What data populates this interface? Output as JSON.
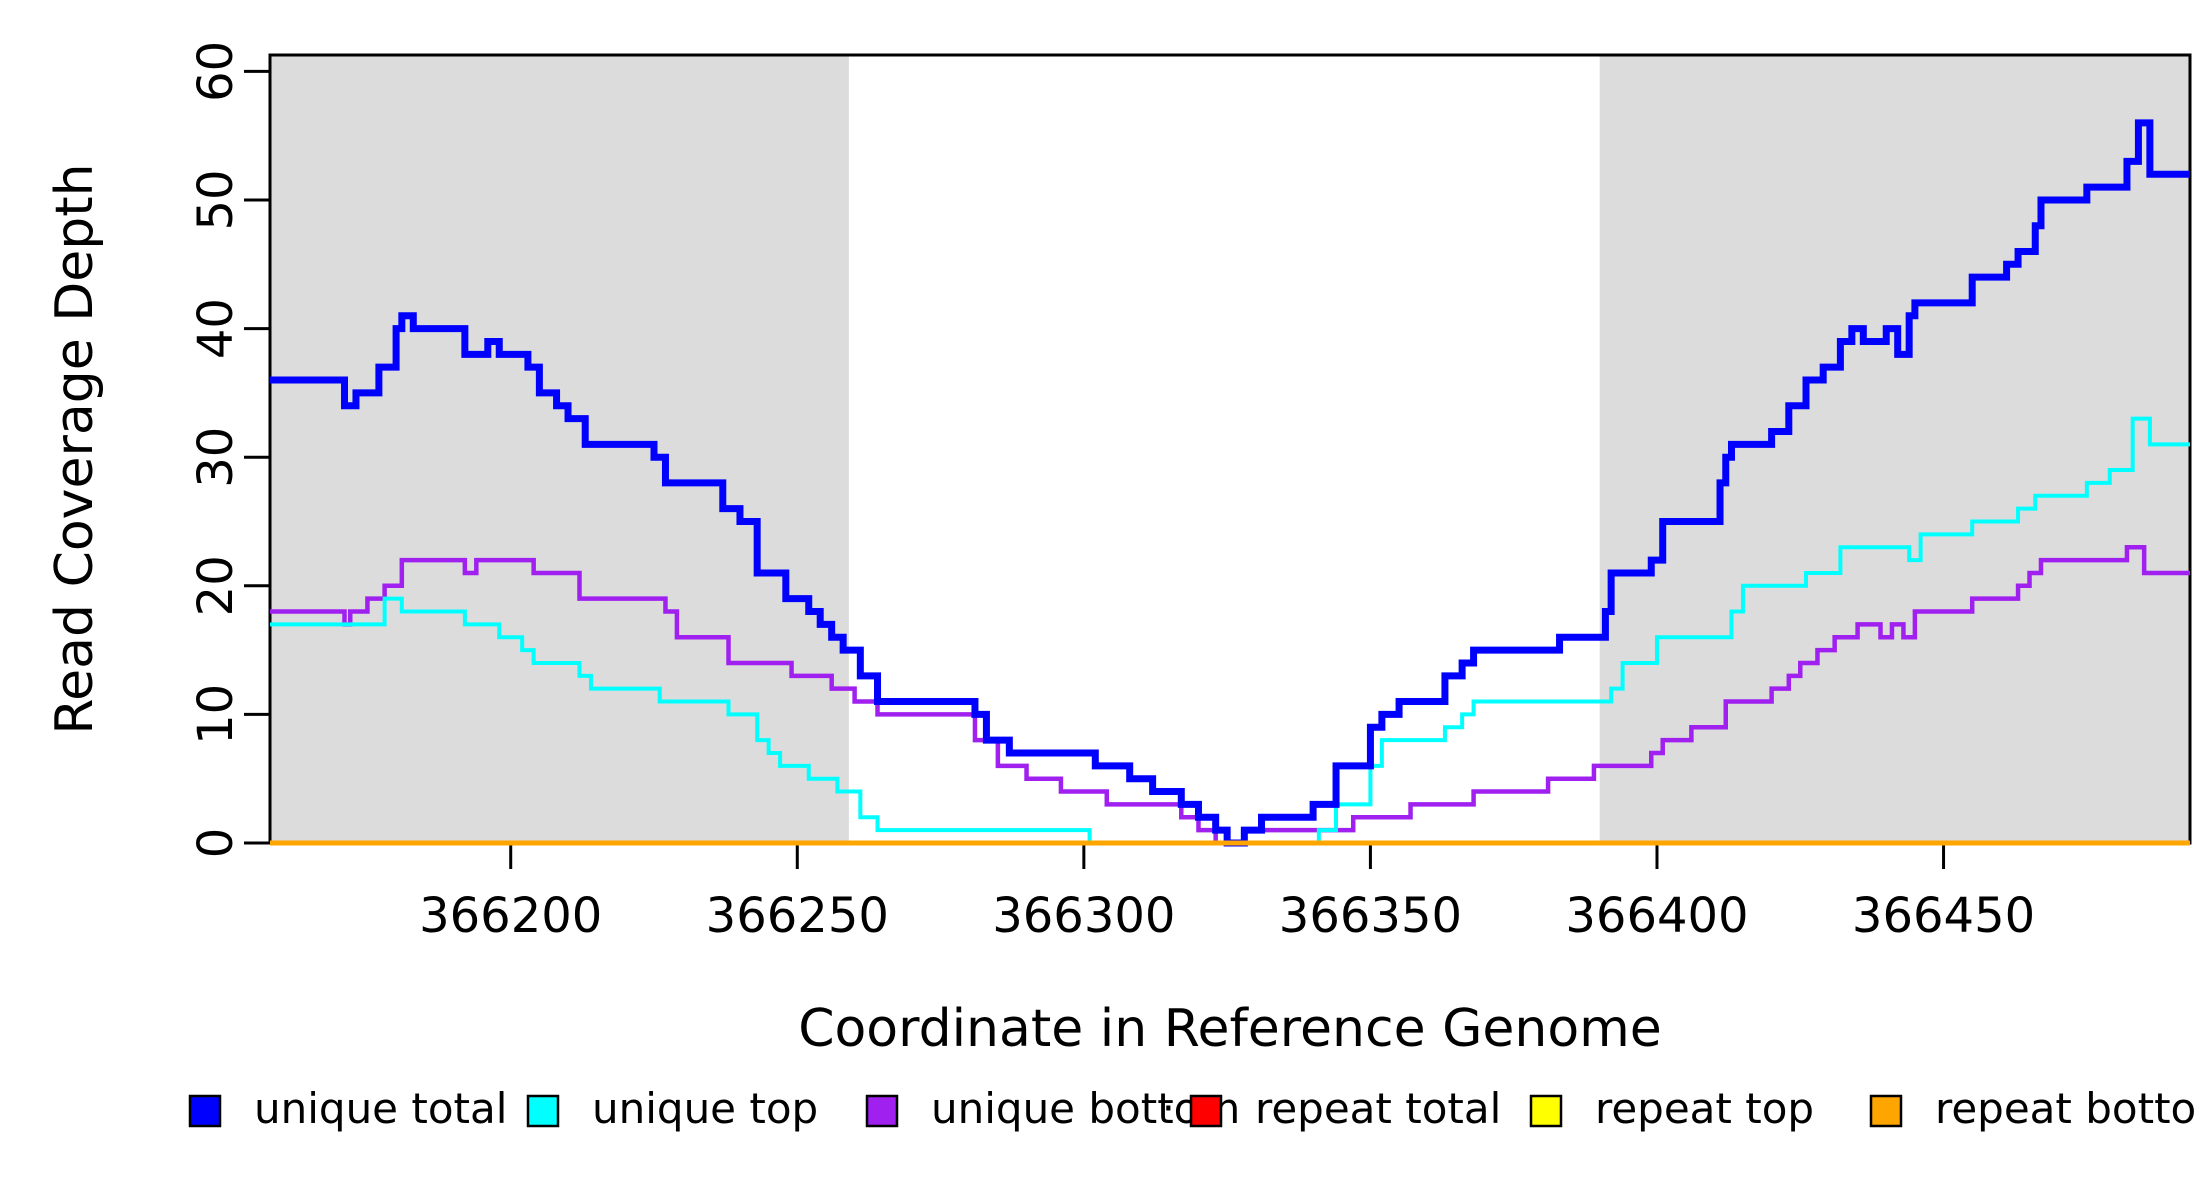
{
  "chart_data": {
    "type": "line",
    "subtype": "step-after",
    "title": "",
    "xlabel": "Coordinate in Reference Genome",
    "ylabel": "Read Coverage Depth",
    "x_axis": {
      "range": [
        366158,
        366493
      ],
      "ticks": [
        366200,
        366250,
        366300,
        366350,
        366400,
        366450
      ],
      "tick_labels": [
        "366200",
        "366250",
        "366300",
        "366350",
        "366400",
        "366450"
      ]
    },
    "y_axis": {
      "range": [
        0,
        61
      ],
      "ticks": [
        0,
        10,
        20,
        30,
        40,
        50,
        60
      ],
      "tick_labels": [
        "0",
        "10",
        "20",
        "30",
        "40",
        "50",
        "60"
      ]
    },
    "grid": false,
    "shade_color": "#dcdcdc",
    "shaded_regions": [
      {
        "name": "left-repeat-region",
        "x0": 366158,
        "x1": 366259
      },
      {
        "name": "right-repeat-region",
        "x0": 366390,
        "x1": 366493
      }
    ],
    "series": [
      {
        "name": "repeat total",
        "id": "repeat-total",
        "color": "#ff0000",
        "width": 4,
        "steps": [
          [
            366158,
            0
          ],
          [
            366493,
            0
          ]
        ]
      },
      {
        "name": "repeat top",
        "id": "repeat-top",
        "color": "#ffff00",
        "width": 4,
        "steps": [
          [
            366158,
            0
          ],
          [
            366493,
            0
          ]
        ]
      },
      {
        "name": "unique bottom",
        "id": "unique-bottom",
        "color": "#a020f0",
        "width": 4.5,
        "steps": [
          [
            366158,
            18
          ],
          [
            366171,
            17
          ],
          [
            366172,
            18
          ],
          [
            366175,
            19
          ],
          [
            366178,
            20
          ],
          [
            366181,
            22
          ],
          [
            366192,
            21
          ],
          [
            366194,
            22
          ],
          [
            366204,
            21
          ],
          [
            366212,
            19
          ],
          [
            366227,
            18
          ],
          [
            366229,
            16
          ],
          [
            366238,
            14
          ],
          [
            366249,
            13
          ],
          [
            366256,
            12
          ],
          [
            366260,
            11
          ],
          [
            366264,
            10
          ],
          [
            366281,
            8
          ],
          [
            366285,
            6
          ],
          [
            366290,
            5
          ],
          [
            366296,
            4
          ],
          [
            366304,
            3
          ],
          [
            366317,
            2
          ],
          [
            366320,
            1
          ],
          [
            366323,
            0
          ],
          [
            366328,
            1
          ],
          [
            366347,
            2
          ],
          [
            366357,
            3
          ],
          [
            366368,
            4
          ],
          [
            366381,
            5
          ],
          [
            366389,
            6
          ],
          [
            366399,
            7
          ],
          [
            366401,
            8
          ],
          [
            366406,
            9
          ],
          [
            366412,
            11
          ],
          [
            366420,
            12
          ],
          [
            366423,
            13
          ],
          [
            366425,
            14
          ],
          [
            366428,
            15
          ],
          [
            366431,
            16
          ],
          [
            366435,
            17
          ],
          [
            366439,
            16
          ],
          [
            366441,
            17
          ],
          [
            366443,
            16
          ],
          [
            366445,
            18
          ],
          [
            366455,
            19
          ],
          [
            366463,
            20
          ],
          [
            366465,
            21
          ],
          [
            366467,
            22
          ],
          [
            366482,
            23
          ],
          [
            366485,
            21
          ],
          [
            366493,
            21
          ]
        ]
      },
      {
        "name": "unique top",
        "id": "unique-top",
        "color": "#00ffff",
        "width": 4,
        "steps": [
          [
            366158,
            17
          ],
          [
            366178,
            19
          ],
          [
            366181,
            18
          ],
          [
            366192,
            17
          ],
          [
            366198,
            16
          ],
          [
            366202,
            15
          ],
          [
            366204,
            14
          ],
          [
            366212,
            13
          ],
          [
            366214,
            12
          ],
          [
            366226,
            11
          ],
          [
            366238,
            10
          ],
          [
            366243,
            8
          ],
          [
            366245,
            7
          ],
          [
            366247,
            6
          ],
          [
            366252,
            5
          ],
          [
            366257,
            4
          ],
          [
            366261,
            2
          ],
          [
            366264,
            1
          ],
          [
            366301,
            0
          ],
          [
            366341,
            1
          ],
          [
            366344,
            3
          ],
          [
            366350,
            6
          ],
          [
            366352,
            8
          ],
          [
            366363,
            9
          ],
          [
            366366,
            10
          ],
          [
            366368,
            11
          ],
          [
            366392,
            12
          ],
          [
            366394,
            14
          ],
          [
            366400,
            16
          ],
          [
            366413,
            18
          ],
          [
            366415,
            20
          ],
          [
            366426,
            21
          ],
          [
            366432,
            23
          ],
          [
            366444,
            22
          ],
          [
            366446,
            24
          ],
          [
            366455,
            25
          ],
          [
            366463,
            26
          ],
          [
            366466,
            27
          ],
          [
            366475,
            28
          ],
          [
            366479,
            29
          ],
          [
            366483,
            33
          ],
          [
            366486,
            31
          ],
          [
            366493,
            31
          ]
        ]
      },
      {
        "name": "unique total",
        "id": "unique-total",
        "color": "#0000ff",
        "width": 7,
        "steps": [
          [
            366158,
            36
          ],
          [
            366171,
            34
          ],
          [
            366173,
            35
          ],
          [
            366177,
            37
          ],
          [
            366180,
            40
          ],
          [
            366181,
            41
          ],
          [
            366183,
            40
          ],
          [
            366192,
            38
          ],
          [
            366196,
            39
          ],
          [
            366198,
            38
          ],
          [
            366203,
            37
          ],
          [
            366205,
            35
          ],
          [
            366208,
            34
          ],
          [
            366210,
            33
          ],
          [
            366213,
            31
          ],
          [
            366225,
            30
          ],
          [
            366227,
            28
          ],
          [
            366237,
            26
          ],
          [
            366240,
            25
          ],
          [
            366243,
            21
          ],
          [
            366248,
            19
          ],
          [
            366252,
            18
          ],
          [
            366254,
            17
          ],
          [
            366256,
            16
          ],
          [
            366258,
            15
          ],
          [
            366261,
            13
          ],
          [
            366264,
            11
          ],
          [
            366281,
            10
          ],
          [
            366283,
            8
          ],
          [
            366287,
            7
          ],
          [
            366302,
            6
          ],
          [
            366308,
            5
          ],
          [
            366312,
            4
          ],
          [
            366317,
            3
          ],
          [
            366320,
            2
          ],
          [
            366323,
            1
          ],
          [
            366325,
            0
          ],
          [
            366328,
            1
          ],
          [
            366331,
            2
          ],
          [
            366340,
            3
          ],
          [
            366344,
            6
          ],
          [
            366350,
            9
          ],
          [
            366352,
            10
          ],
          [
            366355,
            11
          ],
          [
            366363,
            13
          ],
          [
            366366,
            14
          ],
          [
            366368,
            15
          ],
          [
            366383,
            16
          ],
          [
            366391,
            18
          ],
          [
            366392,
            21
          ],
          [
            366399,
            22
          ],
          [
            366401,
            25
          ],
          [
            366411,
            28
          ],
          [
            366412,
            30
          ],
          [
            366413,
            31
          ],
          [
            366420,
            32
          ],
          [
            366423,
            34
          ],
          [
            366426,
            36
          ],
          [
            366429,
            37
          ],
          [
            366432,
            39
          ],
          [
            366434,
            40
          ],
          [
            366436,
            39
          ],
          [
            366440,
            40
          ],
          [
            366442,
            38
          ],
          [
            366444,
            41
          ],
          [
            366445,
            42
          ],
          [
            366455,
            44
          ],
          [
            366461,
            45
          ],
          [
            366463,
            46
          ],
          [
            366466,
            48
          ],
          [
            366467,
            50
          ],
          [
            366475,
            51
          ],
          [
            366482,
            53
          ],
          [
            366484,
            56
          ],
          [
            366486,
            52
          ],
          [
            366493,
            52
          ]
        ]
      },
      {
        "name": "repeat bottom",
        "id": "repeat-bottom",
        "color": "#ffa500",
        "width": 5,
        "steps": [
          [
            366158,
            0
          ],
          [
            366493,
            0
          ]
        ]
      }
    ],
    "legend": {
      "position": "bottom",
      "items": [
        {
          "label": "unique total",
          "id": "unique-total",
          "color": "#0000ff"
        },
        {
          "label": "unique top",
          "id": "unique-top",
          "color": "#00ffff"
        },
        {
          "label": "unique bottom",
          "id": "unique-bottom",
          "color": "#a020f0"
        },
        {
          "label": "repeat total",
          "id": "repeat-total",
          "color": "#ff0000"
        },
        {
          "label": "repeat top",
          "id": "repeat-top",
          "color": "#ffff00"
        },
        {
          "label": "repeat bottom",
          "id": "repeat-bottom",
          "color": "#ffa500"
        }
      ],
      "stray_mark": "·"
    },
    "frame_color": "#000000"
  }
}
